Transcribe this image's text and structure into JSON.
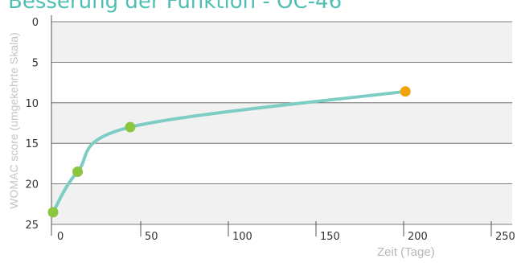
{
  "chart_data": {
    "type": "line",
    "title": "Besserung der Funktion - OC-46",
    "xlabel": "Zeit (Tage)",
    "ylabel": "WOMAC score (umgekehrte Skala)",
    "xlim": [
      0,
      250
    ],
    "ylim": [
      25,
      0
    ],
    "y_inverted": true,
    "xticks": [
      0,
      50,
      100,
      150,
      200,
      250
    ],
    "yticks": [
      0,
      5,
      10,
      15,
      20,
      25
    ],
    "grid": "horizontal bands",
    "series": [
      {
        "color": "#7dcdc4",
        "x": [
          0,
          14,
          44,
          201
        ],
        "y": [
          23.5,
          18.5,
          13,
          8.6
        ],
        "point_colors": [
          "#8cc63f",
          "#8cc63f",
          "#8cc63f",
          "#f0a30a"
        ]
      }
    ]
  }
}
